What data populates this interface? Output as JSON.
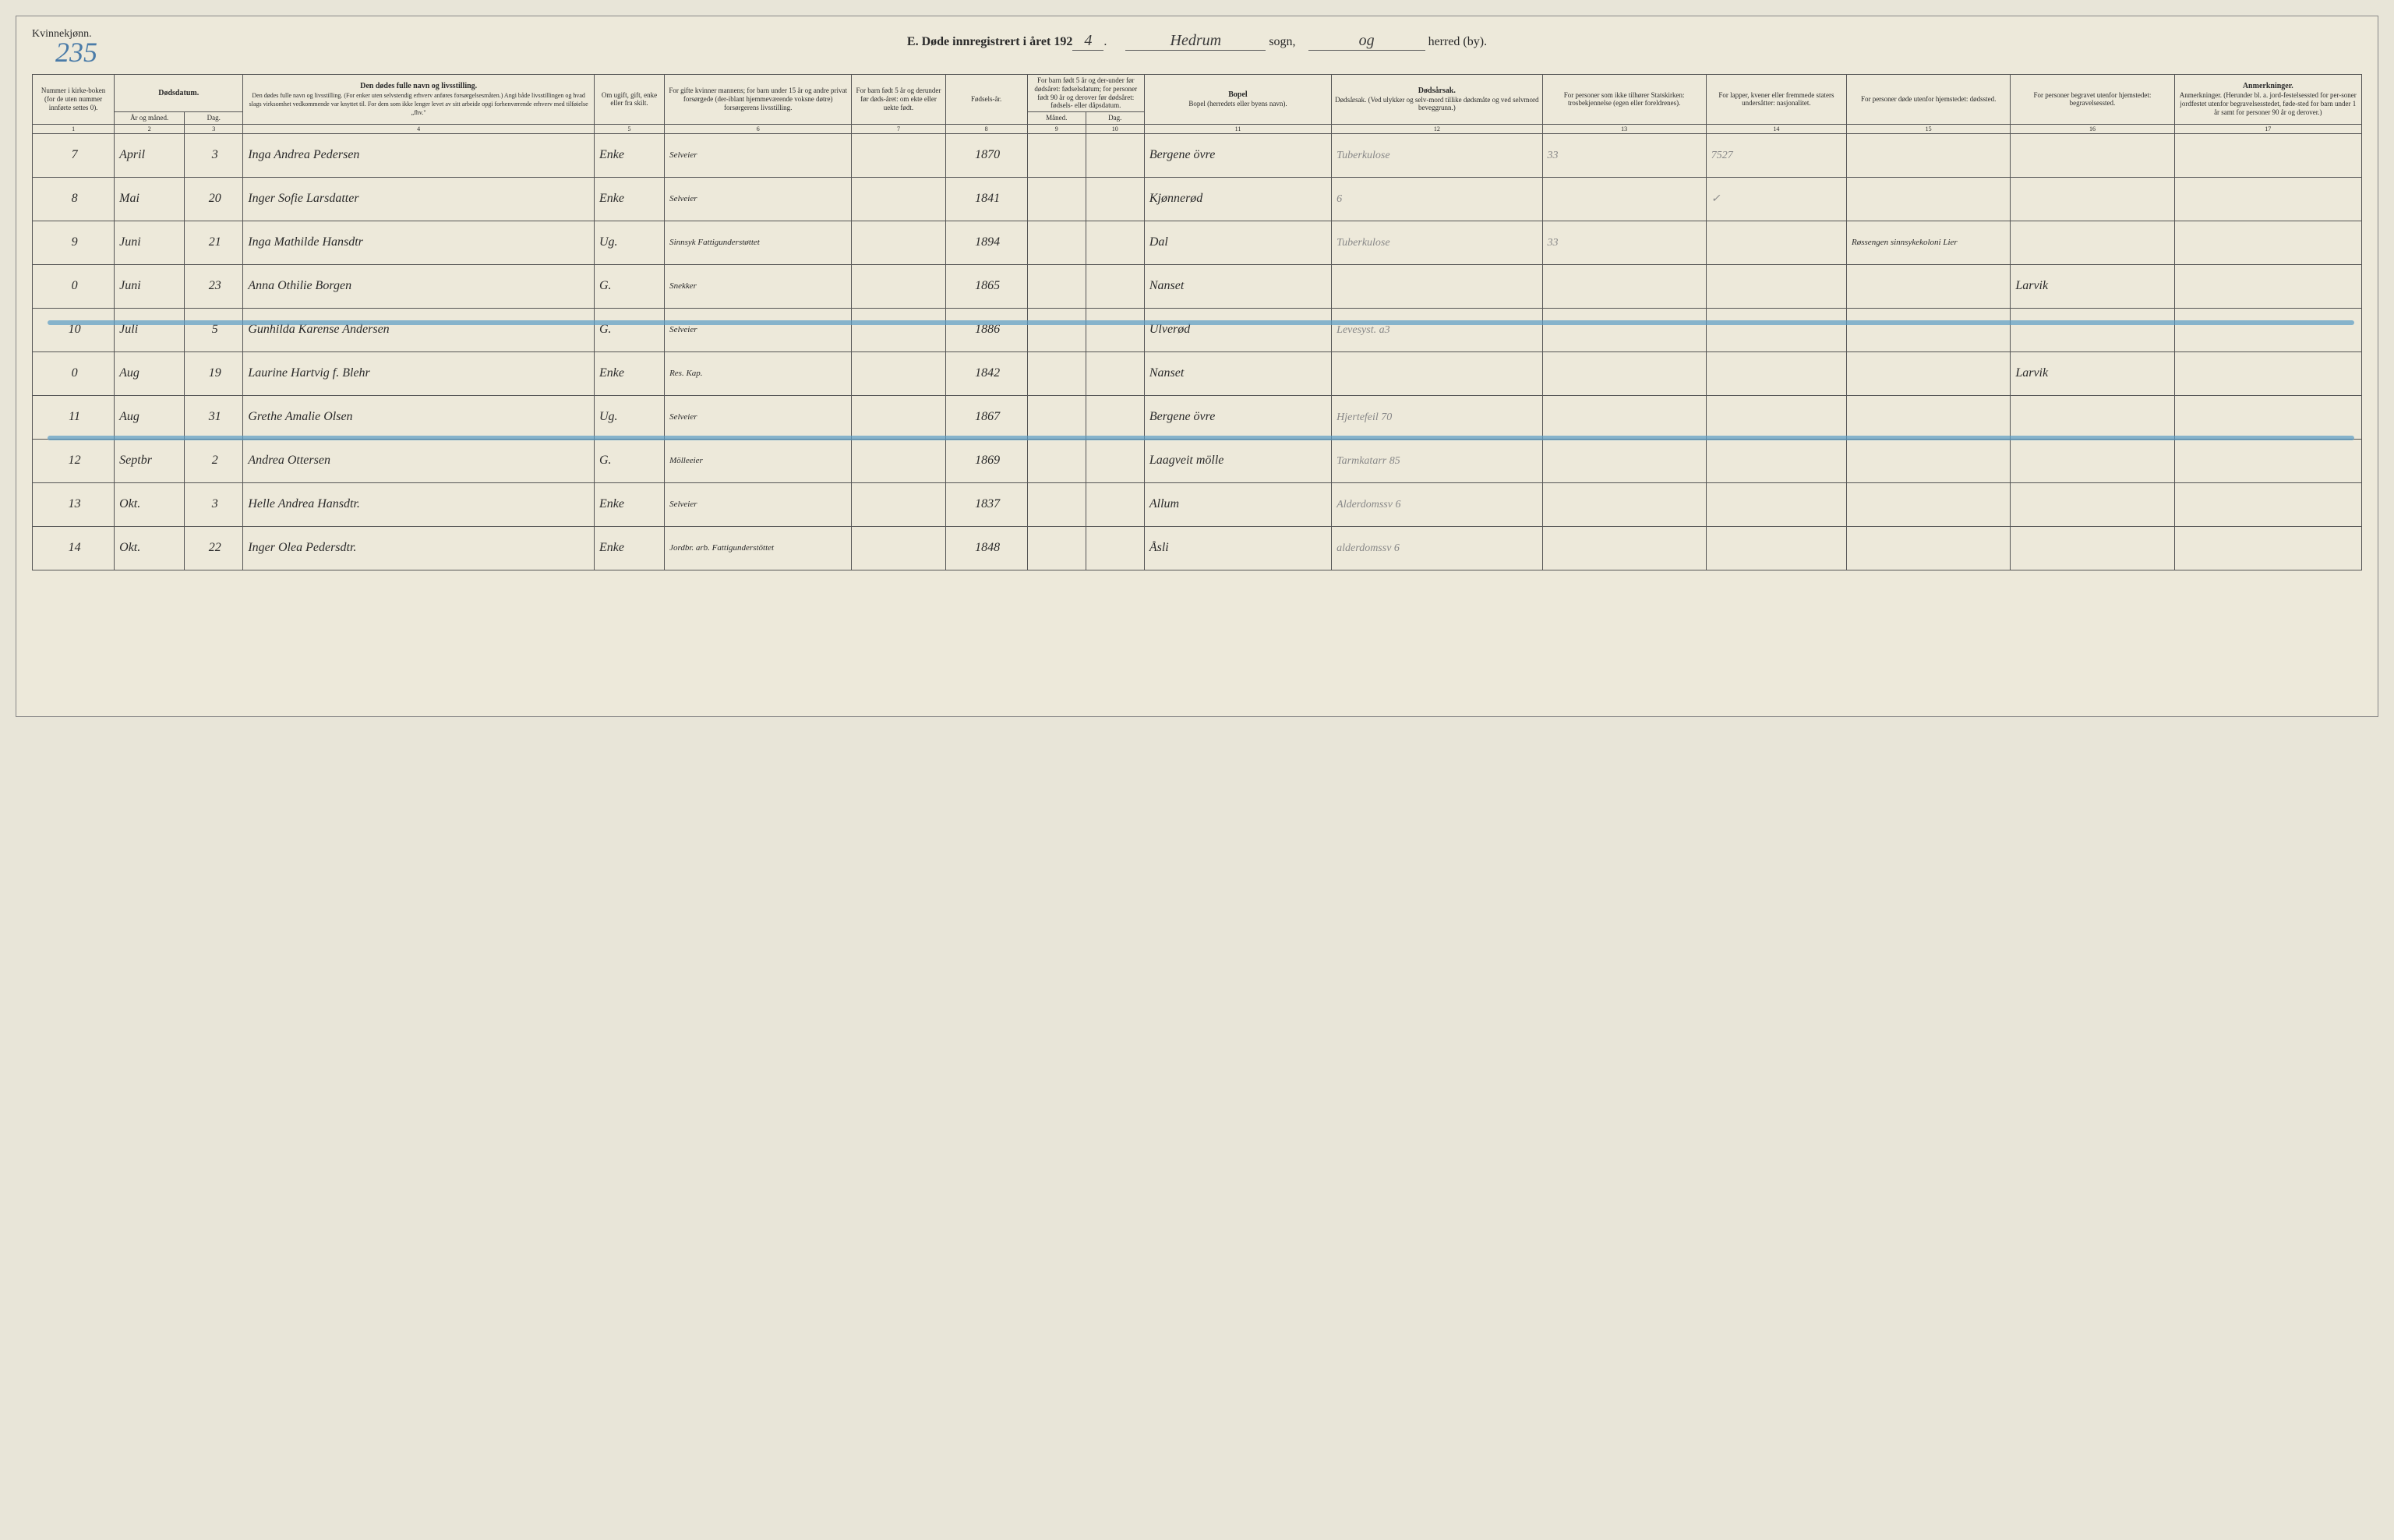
{
  "header": {
    "gender": "Kvinnekjønn.",
    "pageNumber": "235",
    "titlePrefix": "E.  Døde innregistrert i året 192",
    "yearSuffix": "4",
    "sognLabel": "sogn,",
    "sognName": "Hedrum",
    "herredLabel": "herred (by).",
    "herredName": "og"
  },
  "columns": {
    "c1": "Nummer i kirke-boken (for de uten nummer innførte settes 0).",
    "c2_3": "Dødsdatum.",
    "c2": "År og måned.",
    "c3": "Dag.",
    "c4": "Den dødes fulle navn og livsstilling.\n(For enker uten selvstendig erhverv anføres forsørgelsesmåten.)\nAngi både livsstillingen og hvad slags virksomhet vedkommende var knyttet til.\nFor dem som ikke lenger levet av sitt arbeide opgi forhenværende erhverv med tilføielse „fhv.\"",
    "c5": "Om ugift, gift, enke eller fra skilt.",
    "c6": "For gifte kvinner mannens; for barn under 15 år og andre privat forsørgede (der-iblant hjemmeværende voksne døtre) forsørgerens livsstilling.",
    "c7": "For barn født 5 år og derunder før døds-året: om ekte eller uekte født.",
    "c8": "Fødsels-år.",
    "c9_10": "For barn født 5 år og der-under før dødsåret: fødselsdatum; for personer født 90 år og derover før dødsåret: fødsels- eller dåpsdatum.",
    "c9": "Måned.",
    "c10": "Dag.",
    "c11": "Bopel\n(herredets eller byens navn).",
    "c12": "Dødsårsak.\n(Ved ulykker og selv-mord tillike dødsmåte og ved selvmord beveggrunn.)",
    "c13": "For personer som ikke tilhører Statskirken: trosbekjennelse (egen eller foreldrenes).",
    "c14": "For lapper, kvener eller fremmede staters undersåtter: nasjonalitet.",
    "c15": "For personer døde utenfor hjemstedet: dødssted.",
    "c16": "For personer begravet utenfor hjemstedet: begravelsessted.",
    "c17": "Anmerkninger.\n(Herunder bl. a. jord-festelsessted for per-soner jordfestet utenfor begravelsesstedet, føde-sted for barn under 1 år samt for personer 90 år og derover.)"
  },
  "colNums": [
    "1",
    "2",
    "3",
    "4",
    "5",
    "6",
    "7",
    "8",
    "9",
    "10",
    "11",
    "12",
    "13",
    "14",
    "15",
    "16",
    "17"
  ],
  "rows": [
    {
      "n": "7",
      "mo": "April",
      "d": "3",
      "name": "Inga Andrea Pedersen",
      "stat": "Enke",
      "occ": "Selveier",
      "yr": "1870",
      "bopel": "Bergene övre",
      "cause": "Tuberkulose",
      "note13": "33",
      "note14": "7527"
    },
    {
      "n": "8",
      "mo": "Mai",
      "d": "20",
      "name": "Inger Sofie Larsdatter",
      "stat": "Enke",
      "occ": "Selveier",
      "yr": "1841",
      "bopel": "Kjønnerød",
      "cause": "6",
      "note13": "",
      "note14": "✓"
    },
    {
      "n": "9",
      "mo": "Juni",
      "d": "21",
      "name": "Inga Mathilde Hansdtr",
      "stat": "Ug.",
      "occ": "Sinnsyk Fattigunderstøttet",
      "yr": "1894",
      "bopel": "Dal",
      "cause": "Tuberkulose",
      "note13": "33",
      "note15": "Røssengen sinnsykekoloni Lier"
    },
    {
      "n": "0",
      "mo": "Juni",
      "d": "23",
      "name": "Anna Othilie Borgen",
      "stat": "G.",
      "occ": "Snekker",
      "yr": "1865",
      "bopel": "Nanset",
      "cause": "",
      "note16": "Larvik"
    },
    {
      "n": "10",
      "mo": "Juli",
      "d": "5",
      "name": "Gunhilda Karense Andersen",
      "stat": "G.",
      "occ": "Selveier",
      "yr": "1886",
      "bopel": "Ulverød",
      "cause": "Levesyst. a3"
    },
    {
      "n": "0",
      "mo": "Aug",
      "d": "19",
      "name": "Laurine Hartvig f. Blehr",
      "stat": "Enke",
      "occ": "Res. Kap.",
      "yr": "1842",
      "bopel": "Nanset",
      "cause": "",
      "note16": "Larvik"
    },
    {
      "n": "11",
      "mo": "Aug",
      "d": "31",
      "name": "Grethe Amalie Olsen",
      "stat": "Ug.",
      "occ": "Selveier",
      "yr": "1867",
      "bopel": "Bergene övre",
      "cause": "Hjertefeil 70"
    },
    {
      "n": "12",
      "mo": "Septbr",
      "d": "2",
      "name": "Andrea Ottersen",
      "stat": "G.",
      "occ": "Mölleeier",
      "yr": "1869",
      "bopel": "Laagveit mölle",
      "cause": "Tarmkatarr 85"
    },
    {
      "n": "13",
      "mo": "Okt.",
      "d": "3",
      "name": "Helle Andrea Hansdtr.",
      "stat": "Enke",
      "occ": "Selveier",
      "yr": "1837",
      "bopel": "Allum",
      "cause": "Alderdomssv 6"
    },
    {
      "n": "14",
      "mo": "Okt.",
      "d": "22",
      "name": "Inger Olea Pedersdtr.",
      "stat": "Enke",
      "occ": "Jordbr. arb. Fattigunderstöttet",
      "yr": "1848",
      "bopel": "Åsli",
      "cause": "alderdomssv 6"
    }
  ],
  "style": {
    "pageBg": "#ede9da",
    "borderColor": "#555",
    "handColor": "#2a2a2a",
    "blueColor": "#5a9bc4",
    "pencilColor": "#888"
  }
}
